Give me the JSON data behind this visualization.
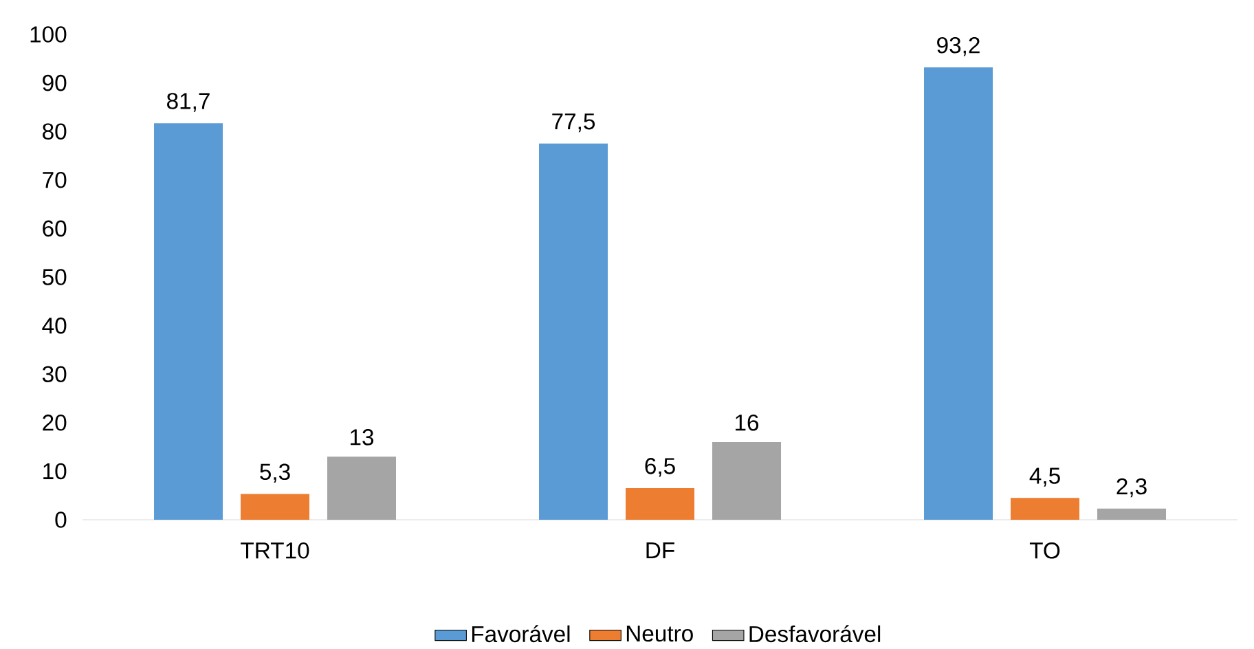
{
  "chart_data": {
    "type": "bar",
    "categories": [
      "TRT10",
      "DF",
      "TO"
    ],
    "series": [
      {
        "name": "Favorável",
        "color": "#5b9bd5",
        "values": [
          81.7,
          77.5,
          93.2
        ],
        "value_labels": [
          "81,7",
          "77,5",
          "93,2"
        ]
      },
      {
        "name": "Neutro",
        "color": "#ed7d31",
        "values": [
          5.3,
          6.5,
          4.5
        ],
        "value_labels": [
          "5,3",
          "6,5",
          "4,5"
        ]
      },
      {
        "name": "Desfavorável",
        "color": "#a5a5a5",
        "values": [
          13,
          16,
          2.3
        ],
        "value_labels": [
          "13",
          "16",
          "2,3"
        ]
      }
    ],
    "ylim": [
      0,
      100
    ],
    "yticks": [
      0,
      10,
      20,
      30,
      40,
      50,
      60,
      70,
      80,
      90,
      100
    ],
    "legend": "bottom"
  }
}
